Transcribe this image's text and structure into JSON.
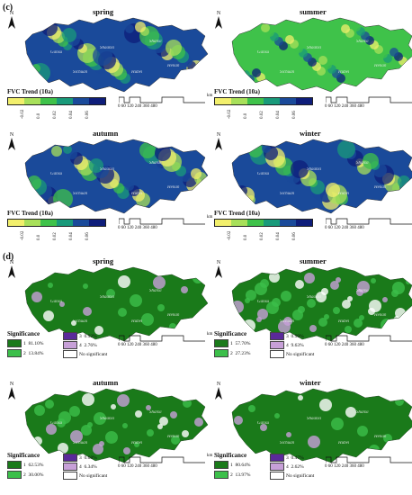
{
  "panel_c": {
    "label": "(c)",
    "legend_title": "FVC Trend (10a)",
    "ticks": [
      "-0.02",
      "0.0",
      "0.02",
      "0.04",
      "0.06"
    ],
    "colors": [
      "#f2ef6c",
      "#a8e05a",
      "#3fc24a",
      "#199a7a",
      "#1a4a9a",
      "#0e1d7a"
    ],
    "seasons": [
      "spring",
      "summer",
      "autumn",
      "winter"
    ]
  },
  "panel_d": {
    "label": "(d)",
    "legend_title": "Significance",
    "seasons": [
      "spring",
      "summer",
      "autumn",
      "winter"
    ],
    "colors": {
      "1": "#1a7a1a",
      "2": "#3cbf4a",
      "3": "#5a2a9a",
      "4": "#c7a0d8",
      "ns": "#ffffff"
    },
    "no_significant": "No significant",
    "stats": [
      {
        "c1": "1",
        "v1": "81.10%",
        "c2": "2",
        "v2": "13.84%",
        "c3": "3",
        "v3": "0.92%",
        "c4": "4",
        "v4": "2.76%"
      },
      {
        "c1": "1",
        "v1": "57.70%",
        "c2": "2",
        "v2": "27.23%",
        "c3": "3",
        "v3": "0.99%",
        "c4": "4",
        "v4": "9.63%"
      },
      {
        "c1": "1",
        "v1": "62.53%",
        "c2": "2",
        "v2": "30.00%",
        "c3": "3",
        "v3": "0.68%",
        "c4": "4",
        "v4": "6.34%"
      },
      {
        "c1": "1",
        "v1": "80.64%",
        "c2": "2",
        "v2": "13.97%",
        "c3": "3",
        "v3": "0.47%",
        "c4": "4",
        "v4": "2.62%"
      }
    ]
  },
  "north_label": "N",
  "scale": {
    "numbers": "0  60 120    240     360     480",
    "unit": "km"
  },
  "provinces": [
    "Gansu",
    "Shaanxi",
    "Shanxi",
    "Henan",
    "Sichuan",
    "Hubei"
  ]
}
